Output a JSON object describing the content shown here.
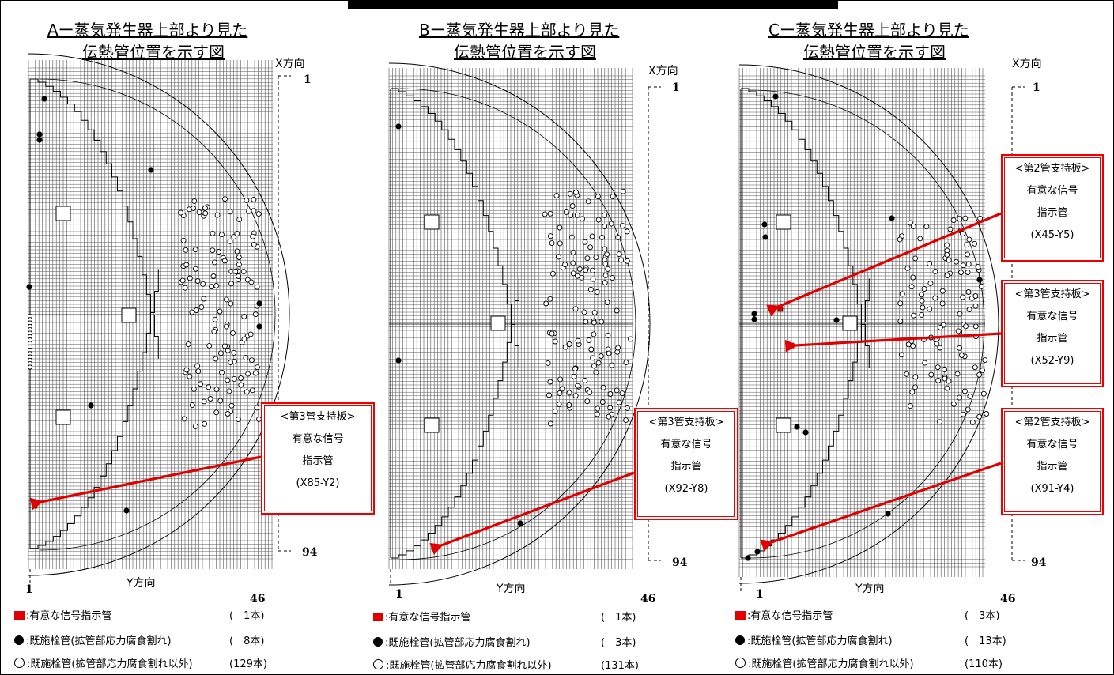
{
  "panels": [
    {
      "id": "a",
      "title_line1": "Aー蒸気発生器上部より見た",
      "title_line2": "伝熱管位置を示す図",
      "x_axis_name": "X方向",
      "y_axis_name": "Y方向",
      "x_tick_top": "1",
      "x_tick_bottom": "94",
      "y_tick_left": "1",
      "y_tick_right": "46",
      "callouts": [
        {
          "heading": "<第3管支持板>",
          "line1": "有意な信号",
          "line2": "指示管",
          "tube": "(X85-Y2)"
        }
      ],
      "legend": [
        {
          "symbol": "red-square",
          "label": ":有意な信号指示管",
          "count": "(　1本)"
        },
        {
          "symbol": "filled-circle",
          "label": ":既施栓管(拡管部応力腐食割れ)",
          "count": "(　8本)"
        },
        {
          "symbol": "open-circle",
          "label": ":既施栓管(拡管部応力腐食割れ以外)",
          "count": "(129本)"
        }
      ]
    },
    {
      "id": "b",
      "title_line1": "Bー蒸気発生器上部より見た",
      "title_line2": "伝熱管位置を示す図",
      "x_axis_name": "X方向",
      "y_axis_name": "Y方向",
      "x_tick_top": "1",
      "x_tick_bottom": "94",
      "y_tick_left": "1",
      "y_tick_right": "46",
      "callouts": [
        {
          "heading": "<第3管支持板>",
          "line1": "有意な信号",
          "line2": "指示管",
          "tube": "(X92-Y8)"
        }
      ],
      "legend": [
        {
          "symbol": "red-square",
          "label": ":有意な信号指示管",
          "count": "(　1本)"
        },
        {
          "symbol": "filled-circle",
          "label": ":既施栓管(拡管部応力腐食割れ)",
          "count": "(　3本)"
        },
        {
          "symbol": "open-circle",
          "label": ":既施栓管(拡管部応力腐食割れ以外)",
          "count": "(131本)"
        }
      ]
    },
    {
      "id": "c",
      "title_line1": "Cー蒸気発生器上部より見た",
      "title_line2": "伝熱管位置を示す図",
      "x_axis_name": "X方向",
      "y_axis_name": "Y方向",
      "x_tick_top": "1",
      "x_tick_bottom": "94",
      "y_tick_left": "1",
      "y_tick_right": "46",
      "callouts": [
        {
          "heading": "<第2管支持板>",
          "line1": "有意な信号",
          "line2": "指示管",
          "tube": "(X45-Y5)"
        },
        {
          "heading": "<第3管支持板>",
          "line1": "有意な信号",
          "line2": "指示管",
          "tube": "(X52-Y9)"
        },
        {
          "heading": "<第2管支持板>",
          "line1": "有意な信号",
          "line2": "指示管",
          "tube": "(X91-Y4)"
        }
      ],
      "legend": [
        {
          "symbol": "red-square",
          "label": ":有意な信号指示管",
          "count": "(　3本)"
        },
        {
          "symbol": "filled-circle",
          "label": ":既施栓管(拡管部応力腐食割れ)",
          "count": "(　13本)"
        },
        {
          "symbol": "open-circle",
          "label": ":既施栓管(拡管部応力腐食割れ以外)",
          "count": "(110本)"
        }
      ]
    }
  ],
  "colors": {
    "signal": "#e00000",
    "grid": "#555555",
    "frame": "#000000"
  }
}
